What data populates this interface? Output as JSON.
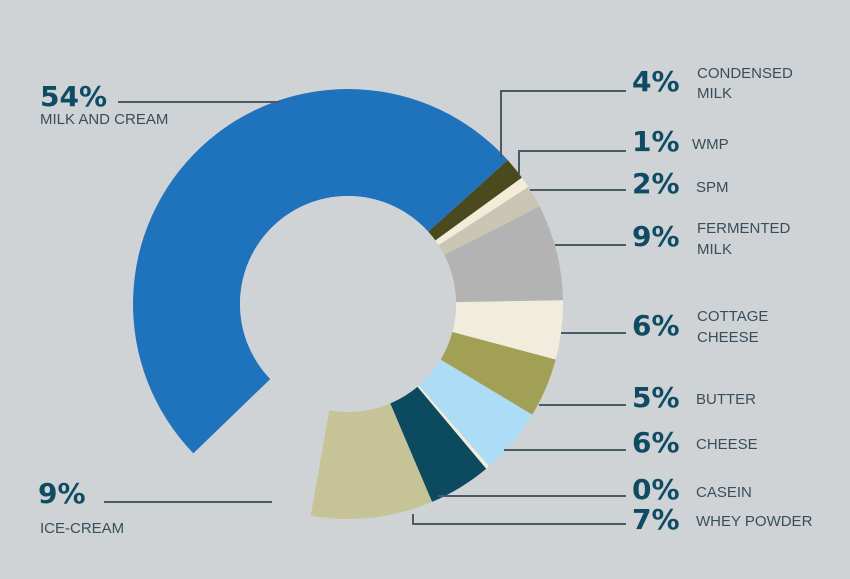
{
  "chart_data": {
    "type": "pie",
    "style": "donut",
    "unit": "%",
    "slices": [
      {
        "label": "MILK AND CREAM",
        "value": 54,
        "value_label": "54%",
        "color": "#1f72bc"
      },
      {
        "label": "CONDENSED MILK",
        "value": 4,
        "value_label": "4%",
        "color": "#4b4a1f"
      },
      {
        "label": "WMP",
        "value": 1,
        "value_label": "1%",
        "color": "#f3ecd8"
      },
      {
        "label": "SPM",
        "value": 2,
        "value_label": "2%",
        "color": "#cbc6b4"
      },
      {
        "label": "FERMENTED MILK",
        "value": 9,
        "value_label": "9%",
        "color": "#b3b3b3"
      },
      {
        "label": "COTTAGE CHEESE",
        "value": 6,
        "value_label": "6%",
        "color": "#f2ecdc"
      },
      {
        "label": "BUTTER",
        "value": 5,
        "value_label": "5%",
        "color": "#a1a055"
      },
      {
        "label": "CHEESE",
        "value": 6,
        "value_label": "6%",
        "color": "#addcf6"
      },
      {
        "label": "CASEIN",
        "value": 0,
        "value_label": "0%",
        "color": "#f2ecd8"
      },
      {
        "label": "WHEY POWDER",
        "value": 7,
        "value_label": "7%",
        "color": "#0c4a60"
      },
      {
        "label": "ICE-CREAM",
        "value": 9,
        "value_label": "9%",
        "color": "#c6c497"
      }
    ]
  }
}
